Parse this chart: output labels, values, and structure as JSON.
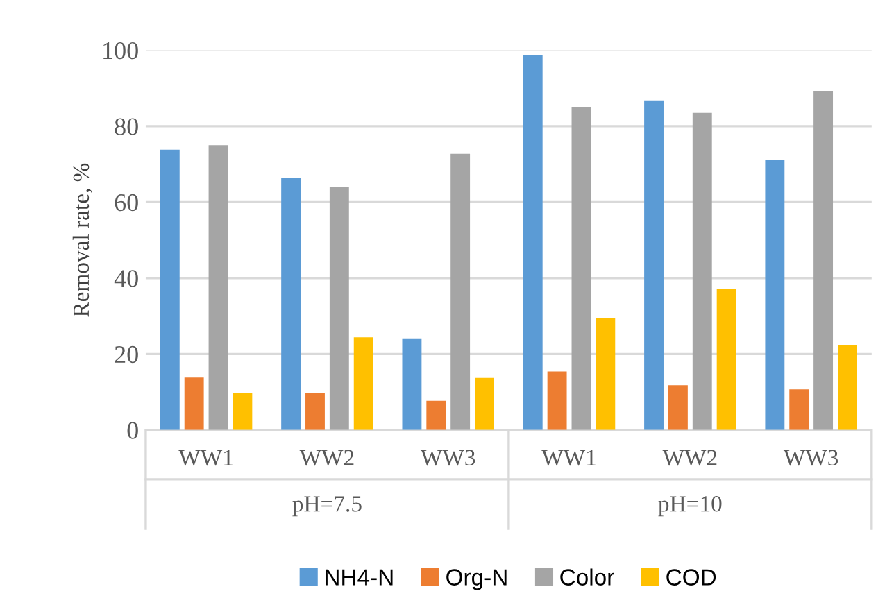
{
  "chart_data": {
    "type": "bar",
    "ylabel": "Removal rate, %",
    "categories": [
      "WW1",
      "WW2",
      "WW3",
      "WW1",
      "WW2",
      "WW3"
    ],
    "annotations": [
      "pH=7.5",
      "pH=10"
    ],
    "series": [
      {
        "name": "NH4-N",
        "color": "#5b9bd5",
        "values": [
          73.8,
          66.3,
          24.1,
          98.7,
          86.8,
          71.2
        ]
      },
      {
        "name": "Org-N",
        "color": "#ed7d31",
        "values": [
          13.8,
          9.8,
          7.7,
          15.4,
          11.8,
          10.7
        ]
      },
      {
        "name": "Color",
        "color": "#a5a5a5",
        "values": [
          75,
          64.1,
          72.7,
          85.1,
          83.5,
          89.3
        ]
      },
      {
        "name": "COD",
        "color": "#ffc000",
        "values": [
          9.8,
          24.4,
          13.7,
          29.4,
          37.1,
          22.3
        ]
      }
    ],
    "ylim": [
      0,
      100
    ],
    "yticks": [
      0,
      20,
      40,
      60,
      80,
      100
    ],
    "grid": "y",
    "legend": "bottom"
  }
}
